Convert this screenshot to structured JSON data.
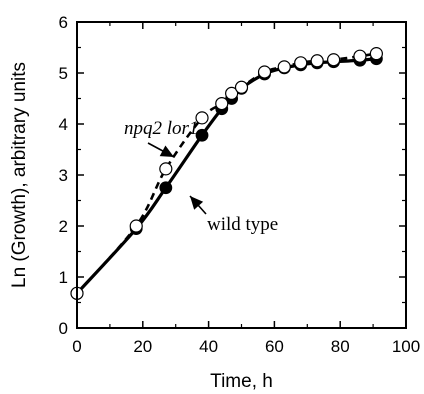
{
  "chart_data": {
    "type": "line",
    "xlabel": "Time, h",
    "ylabel": "Ln (Growth), arbitrary units",
    "xlim": [
      0,
      100
    ],
    "ylim": [
      0,
      6
    ],
    "x_ticks": [
      "0",
      "20",
      "40",
      "60",
      "80",
      "100"
    ],
    "y_ticks": [
      "0",
      "1",
      "2",
      "3",
      "4",
      "5",
      "6"
    ],
    "grid": false,
    "legend": "none",
    "series": [
      {
        "name": "wild type",
        "marker": "filled-circle",
        "line_style": "solid",
        "color": "#000000",
        "x": [
          0,
          18,
          27,
          38,
          44,
          47,
          50,
          57,
          63,
          68,
          73,
          78,
          86,
          91
        ],
        "y": [
          0.68,
          1.95,
          2.75,
          3.78,
          4.3,
          4.5,
          4.7,
          4.98,
          5.1,
          5.16,
          5.2,
          5.22,
          5.25,
          5.28
        ]
      },
      {
        "name": "npq2 lor1",
        "marker": "open-circle",
        "line_style": "dashed",
        "color": "#000000",
        "x": [
          0,
          18,
          27,
          38,
          44,
          47,
          50,
          57,
          63,
          68,
          73,
          78,
          86,
          91
        ],
        "y": [
          0.68,
          2.0,
          3.12,
          4.12,
          4.4,
          4.6,
          4.72,
          5.02,
          5.12,
          5.2,
          5.24,
          5.26,
          5.33,
          5.38
        ]
      }
    ],
    "annotations": [
      {
        "text": "npq2 lor1",
        "points_to": "npq2 lor1"
      },
      {
        "text": "wild type",
        "points_to": "wild type"
      }
    ]
  }
}
